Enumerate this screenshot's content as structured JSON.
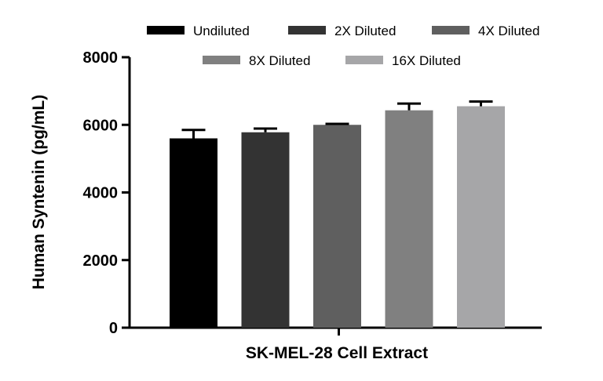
{
  "chart_data": {
    "type": "bar",
    "title": "",
    "xlabel": "SK-MEL-28 Cell Extract",
    "ylabel": "Human Syntenin (pg/mL)",
    "ylim": [
      0,
      8000
    ],
    "yticks": [
      0,
      2000,
      4000,
      6000,
      8000
    ],
    "ytick_labels": [
      "0",
      "2000",
      "4000",
      "6000",
      "8000"
    ],
    "categories": [
      "SK-MEL-28 Cell Extract"
    ],
    "series": [
      {
        "name": "Undiluted",
        "values": [
          5600
        ],
        "error": [
          250
        ],
        "color": "#000000"
      },
      {
        "name": "2X Diluted",
        "values": [
          5780
        ],
        "error": [
          110
        ],
        "color": "#333333"
      },
      {
        "name": "4X Diluted",
        "values": [
          6000
        ],
        "error": [
          30
        ],
        "color": "#5f5f5f"
      },
      {
        "name": "8X Diluted",
        "values": [
          6430
        ],
        "error": [
          200
        ],
        "color": "#808080"
      },
      {
        "name": "16X Diluted",
        "values": [
          6550
        ],
        "error": [
          140
        ],
        "color": "#a6a6a8"
      }
    ],
    "legend_position": "top",
    "grid": false
  }
}
